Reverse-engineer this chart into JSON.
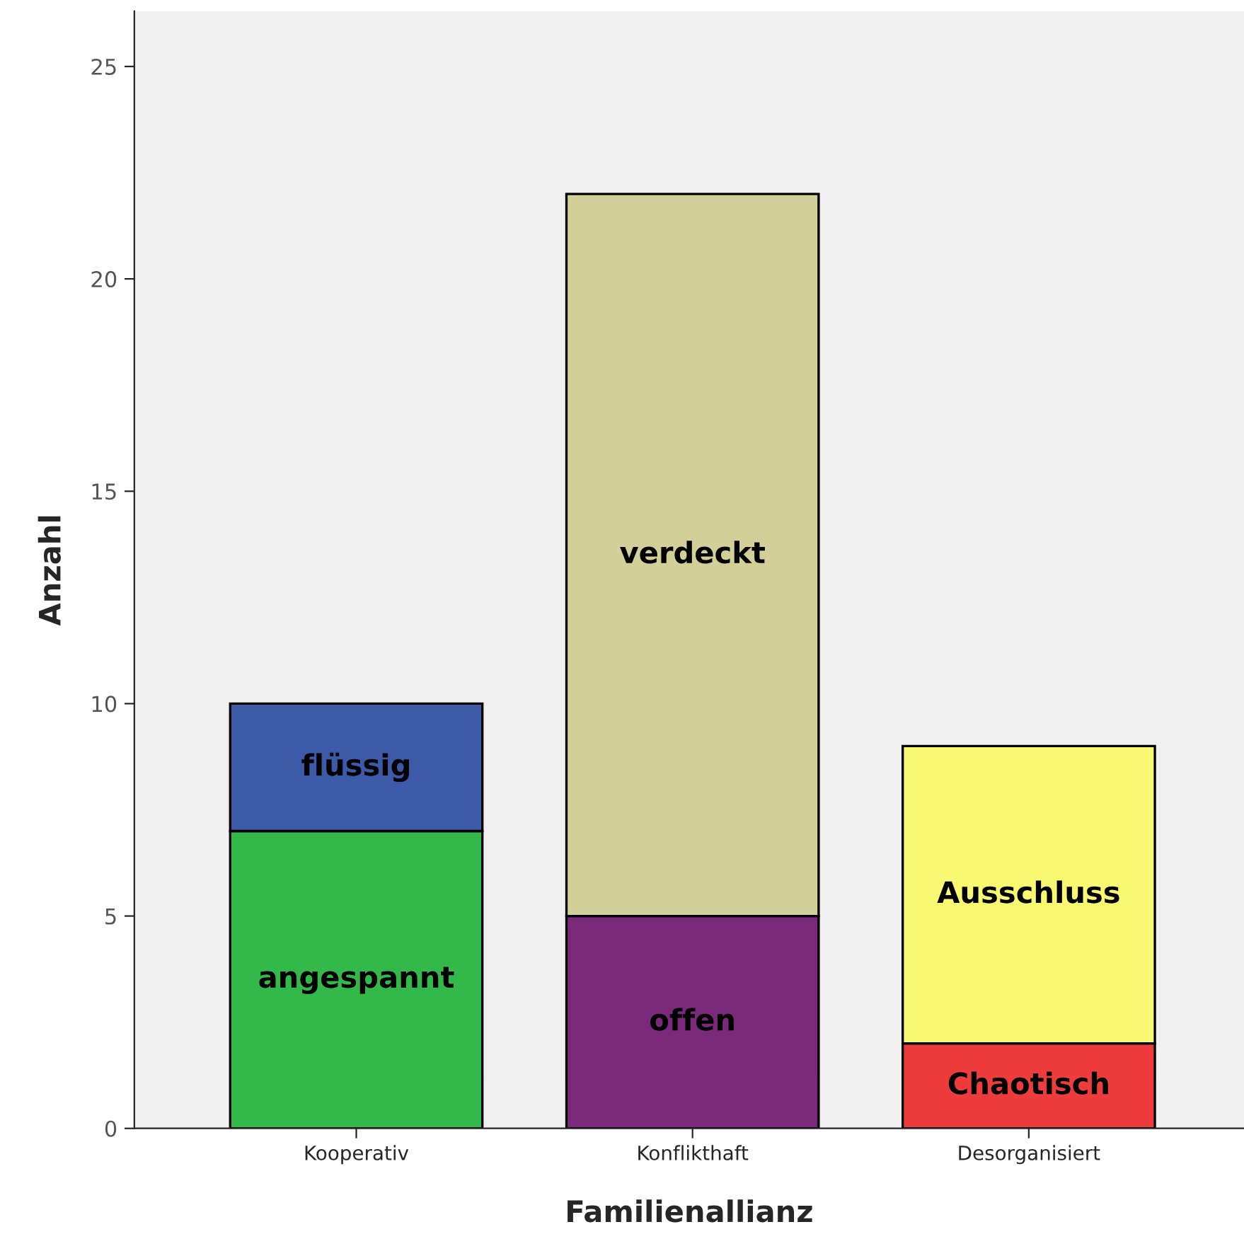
{
  "chart_data": {
    "type": "bar",
    "stacked": true,
    "xlabel": "Familienallianz",
    "ylabel": "Anzahl",
    "categories": [
      "Kooperativ",
      "Konflikthaft",
      "Desorganisiert"
    ],
    "series": [
      {
        "name": "angespannt",
        "color": "#33b84a",
        "values": [
          7,
          null,
          null
        ]
      },
      {
        "name": "offen",
        "color": "#7b2a7b",
        "values": [
          null,
          5,
          null
        ]
      },
      {
        "name": "Chaotisch",
        "color": "#ee3b3b",
        "values": [
          null,
          null,
          2
        ]
      },
      {
        "name": "flüssig",
        "color": "#3c5aa8",
        "values": [
          3,
          null,
          null
        ]
      },
      {
        "name": "verdeckt",
        "color": "#d3cf98",
        "values": [
          null,
          17,
          null
        ]
      },
      {
        "name": "Ausschluss",
        "color": "#f9f871",
        "values": [
          null,
          null,
          7
        ]
      }
    ],
    "ylim": [
      0,
      26.3
    ],
    "yticks": [
      0,
      5,
      10,
      15,
      20,
      25
    ],
    "grid": false,
    "legend": false
  }
}
